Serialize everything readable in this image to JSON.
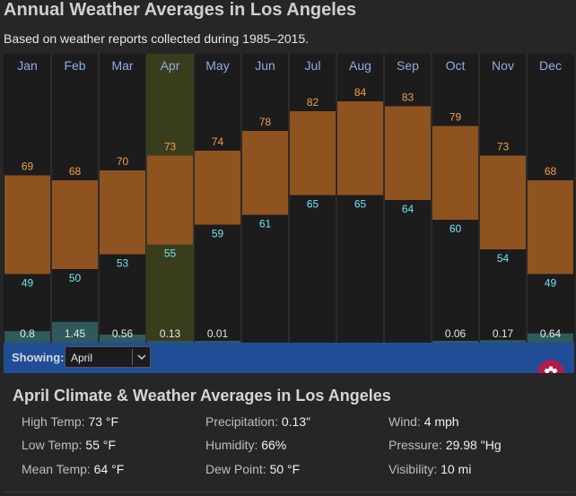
{
  "page": {
    "title": "Annual Weather Averages in Los Angeles",
    "subtitle": "Based on weather reports collected during 1985–2015."
  },
  "chart_data": {
    "type": "bar",
    "categories": [
      "Jan",
      "Feb",
      "Mar",
      "Apr",
      "May",
      "Jun",
      "Jul",
      "Aug",
      "Sep",
      "Oct",
      "Nov",
      "Dec"
    ],
    "series": [
      {
        "values": [
          69,
          68,
          70,
          73,
          74,
          78,
          82,
          84,
          83,
          79,
          73,
          68
        ]
      },
      {
        "values": [
          49,
          50,
          53,
          55,
          59,
          61,
          65,
          65,
          64,
          60,
          54,
          49
        ]
      },
      {
        "values": [
          "0.8",
          "1.45",
          "0.56",
          "0.13",
          "0.01",
          "",
          "",
          "",
          "",
          "0.06",
          "0.17",
          "0.64"
        ]
      }
    ],
    "selected_category": "Apr",
    "colors": {
      "temp_bar": "#8f5320",
      "high_label": "#f0a04a",
      "low_label": "#6ee3f0",
      "precip_bar": "#2f5a5c",
      "highlight": "#3a3d1c",
      "month_label": "#8ab0e0",
      "background": "#1c1c1c",
      "grid": "#3b3b3b"
    }
  },
  "controls": {
    "showing_label": "Showing:",
    "selected_month": "April"
  },
  "icons": {
    "settings": "gear-icon",
    "dropdown": "chevron-down-icon"
  },
  "details": {
    "title": "April Climate & Weather Averages in Los Angeles",
    "stats": [
      {
        "label": "High Temp:",
        "value": "73 °F"
      },
      {
        "label": "Precipitation:",
        "value": "0.13\""
      },
      {
        "label": "Wind:",
        "value": "4 mph"
      },
      {
        "label": "Low Temp:",
        "value": "55 °F"
      },
      {
        "label": "Humidity:",
        "value": "66%"
      },
      {
        "label": "Pressure:",
        "value": "29.98 \"Hg"
      },
      {
        "label": "Mean Temp:",
        "value": "64 °F"
      },
      {
        "label": "Dew Point:",
        "value": "50 °F"
      },
      {
        "label": "Visibility:",
        "value": "10 mi"
      }
    ]
  }
}
